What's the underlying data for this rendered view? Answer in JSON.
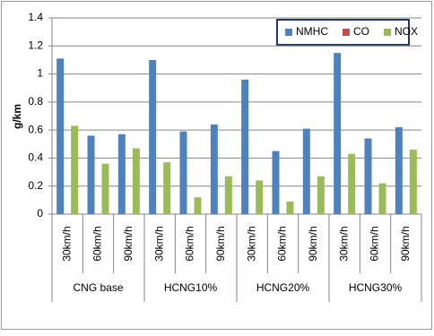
{
  "chart_data": {
    "type": "bar",
    "y_label": "g/km",
    "groups": [
      {
        "name": "CNG base",
        "categories": [
          "30km/h",
          "60km/h",
          "90km/h"
        ]
      },
      {
        "name": "HCNG10%",
        "categories": [
          "30km/h",
          "60km/h",
          "90km/h"
        ]
      },
      {
        "name": "HCNG20%",
        "categories": [
          "30km/h",
          "60km/h",
          "90km/h"
        ]
      },
      {
        "name": "HCNG30%",
        "categories": [
          "30km/h",
          "60km/h",
          "90km/h"
        ]
      }
    ],
    "series": [
      {
        "name": "NMHC",
        "color": "#4f81bd",
        "values": [
          1.11,
          0.56,
          0.57,
          1.1,
          0.59,
          0.64,
          0.96,
          0.45,
          0.61,
          1.15,
          0.54,
          0.62
        ]
      },
      {
        "name": "CO",
        "color": "#c0504d",
        "values": [
          0,
          0,
          0,
          0,
          0,
          0,
          0,
          0,
          0,
          0,
          0,
          0
        ]
      },
      {
        "name": "NOX",
        "color": "#9bbb59",
        "values": [
          0.63,
          0.36,
          0.47,
          0.37,
          0.12,
          0.27,
          0.24,
          0.09,
          0.27,
          0.43,
          0.22,
          0.46
        ]
      }
    ],
    "ylim": [
      0,
      1.4
    ],
    "yticks": [
      0,
      0.2,
      0.4,
      0.6,
      0.8,
      1,
      1.2,
      1.4
    ],
    "grid": true,
    "legend": "top-right"
  }
}
